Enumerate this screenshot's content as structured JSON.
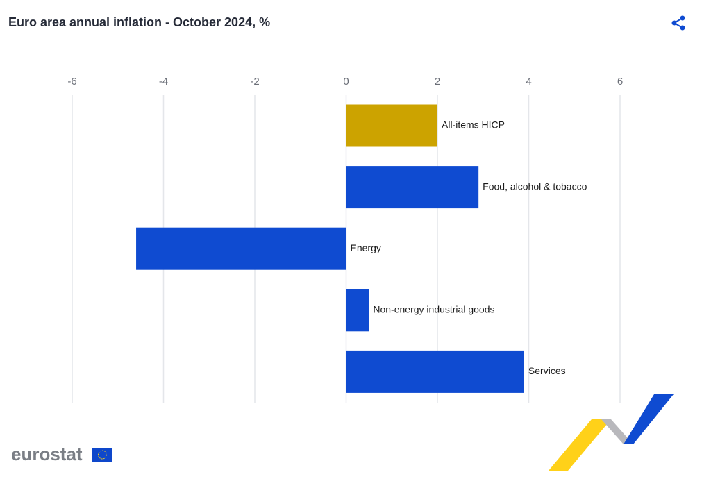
{
  "chart_data": {
    "type": "hbar",
    "title": "Euro area annual inflation - October 2024, %",
    "categories": [
      "All-items HICP",
      "Food, alcohol & tobacco",
      "Energy",
      "Non-energy industrial goods",
      "Services"
    ],
    "values": [
      2.0,
      2.9,
      -4.6,
      0.5,
      3.9
    ],
    "colors": [
      "#cca300",
      "#0f4bd1",
      "#0f4bd1",
      "#0f4bd1",
      "#0f4bd1"
    ],
    "xlim": [
      -6,
      6
    ],
    "xticks": [
      -6,
      -4,
      -2,
      0,
      2,
      4,
      6
    ],
    "grid": true
  },
  "logo": "eurostat"
}
